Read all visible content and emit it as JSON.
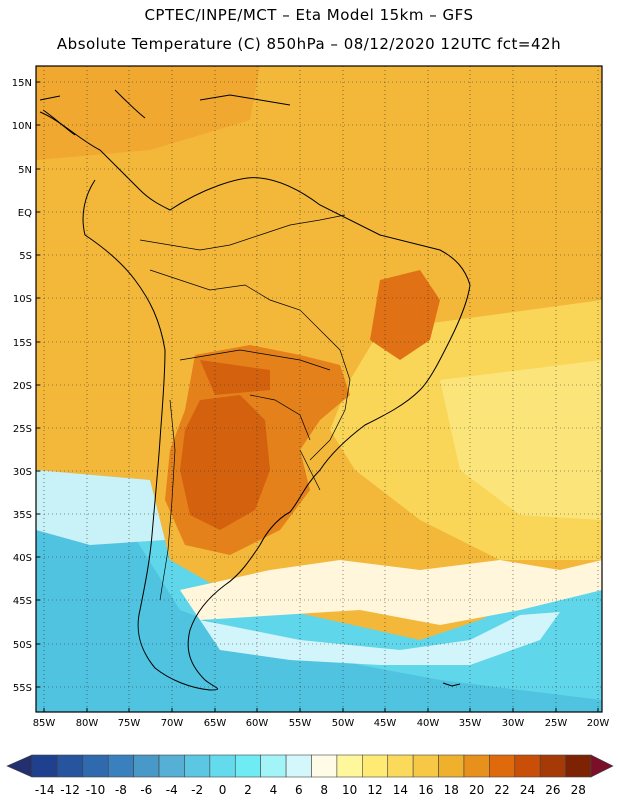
{
  "header": {
    "line1": "CPTEC/INPE/MCT –  Eta Model 15km – GFS",
    "line2": "Absolute Temperature (C) 850hPa – 08/12/2020 12UTC fct=42h"
  },
  "map": {
    "lat_labels": [
      "15N",
      "10N",
      "5N",
      "EQ",
      "5S",
      "10S",
      "15S",
      "20S",
      "25S",
      "30S",
      "35S",
      "40S",
      "45S",
      "50S",
      "55S"
    ],
    "lon_labels": [
      "85W",
      "80W",
      "75W",
      "70W",
      "65W",
      "60W",
      "55W",
      "50W",
      "45W",
      "40W",
      "35W",
      "30W",
      "25W",
      "20W"
    ]
  },
  "colorbar": {
    "labels": [
      "-14",
      "-12",
      "-10",
      "-8",
      "-6",
      "-4",
      "-2",
      "0",
      "2",
      "4",
      "6",
      "8",
      "10",
      "12",
      "14",
      "16",
      "18",
      "20",
      "22",
      "24",
      "26",
      "28"
    ],
    "colors": [
      "#1f3f8f",
      "#27549e",
      "#2f6aaf",
      "#3a80be",
      "#4898c8",
      "#56b0d6",
      "#5cc7e3",
      "#63dbec",
      "#6fecf3",
      "#a2f4f8",
      "#d4f7fb",
      "#fffbe6",
      "#fff79c",
      "#ffea74",
      "#fbd95a",
      "#f7c846",
      "#efb02c",
      "#e8901c",
      "#df6a0c",
      "#c94e08",
      "#a63a06",
      "#7e2204"
    ],
    "under_color": "#22306f",
    "over_color": "#7a0f2a"
  }
}
